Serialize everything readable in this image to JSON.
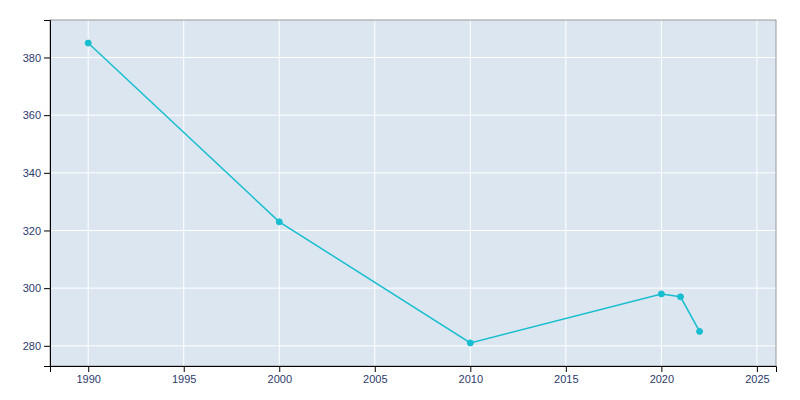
{
  "chart_data": {
    "type": "line",
    "x": [
      1990,
      2000,
      2010,
      2020,
      2021,
      2022
    ],
    "values": [
      385,
      323,
      281,
      298,
      297,
      285
    ],
    "color": "#17BECF",
    "marker": "circle",
    "xlim": [
      1988,
      2026
    ],
    "ylim": [
      273,
      393
    ],
    "xticks": [
      1990,
      1995,
      2000,
      2005,
      2010,
      2015,
      2020,
      2025
    ],
    "yticks": [
      280,
      300,
      320,
      340,
      360,
      380
    ],
    "grid": true
  }
}
